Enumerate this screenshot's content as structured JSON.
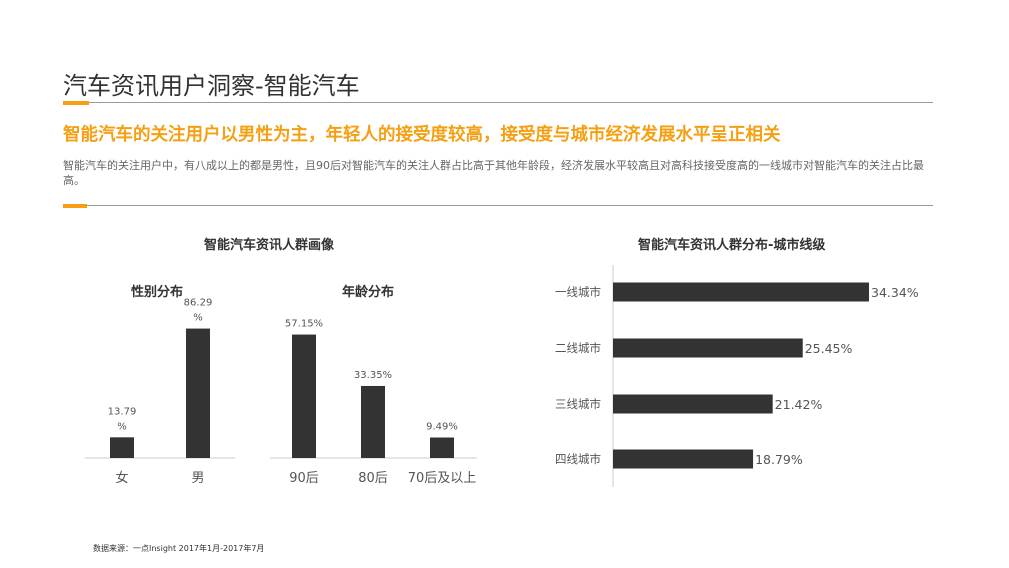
{
  "page": {
    "title": "汽车资讯用户洞察-智能汽车",
    "headline": "智能汽车的关注用户以男性为主，年轻人的接受度较高，接受度与城市经济发展水平呈正相关",
    "description": "智能汽车的关注用户中，有八成以上的都是男性，且90后对智能汽车的关注人群占比高于其他年龄段，经济发展水平较高且对高科技接受度高的一线城市对智能汽车的关注占比最高。",
    "source": "数据来源：一点Insight   2017年1月-2017年7月",
    "accent_color": "#f5a013",
    "bar_color": "#333333"
  },
  "left_panel_title": "智能汽车资讯人群画像",
  "right_panel_title": "智能汽车资讯人群分布-城市线级",
  "chart_data": [
    {
      "type": "bar",
      "title": "性别分布",
      "categories": [
        "女",
        "男"
      ],
      "values": [
        13.79,
        86.29
      ],
      "labels": [
        "13.79\n%",
        "86.29\n%"
      ],
      "ylim": [
        0,
        100
      ]
    },
    {
      "type": "bar",
      "title": "年龄分布",
      "categories": [
        "90后",
        "80后",
        "70后及以上"
      ],
      "values": [
        57.15,
        33.35,
        9.49
      ],
      "labels": [
        "57.15%",
        "33.35%",
        "9.49%"
      ],
      "ylim": [
        0,
        100
      ]
    },
    {
      "type": "bar",
      "orientation": "horizontal",
      "categories": [
        "一线城市",
        "二线城市",
        "三线城市",
        "四线城市"
      ],
      "values": [
        34.34,
        25.45,
        21.42,
        18.79
      ],
      "labels": [
        "34.34%",
        "25.45%",
        "21.42%",
        "18.79%"
      ],
      "xlim": [
        0,
        40
      ]
    }
  ]
}
